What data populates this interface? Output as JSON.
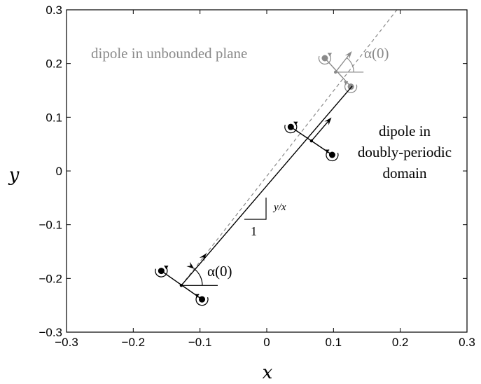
{
  "chart_data": {
    "type": "scatter",
    "xlabel": "x",
    "ylabel": "y",
    "xlim": [
      -0.3,
      0.3
    ],
    "ylim": [
      -0.3,
      0.3
    ],
    "xticks": [
      -0.3,
      -0.2,
      -0.1,
      0,
      0.1,
      0.2,
      0.3
    ],
    "yticks": [
      -0.3,
      -0.2,
      -0.1,
      0,
      0.1,
      0.2,
      0.3
    ],
    "xtick_labels": [
      "−0.3",
      "−0.2",
      "−0.1",
      "0",
      "0.1",
      "0.2",
      "0.3"
    ],
    "ytick_labels": [
      "−0.3",
      "−0.2",
      "−0.1",
      "0",
      "0.1",
      "0.2",
      "0.3"
    ],
    "grid": false,
    "colors": {
      "periodic": "#000000",
      "unbounded": "#8a8a8a"
    },
    "series": [
      {
        "name": "dipole in unbounded plane",
        "style": "dashed",
        "line": [
          [
            -0.128,
            -0.213
          ],
          [
            0.195,
            0.3
          ]
        ],
        "vortices": [
          [
            -0.158,
            -0.186
          ],
          [
            -0.097,
            -0.239
          ],
          [
            0.087,
            0.21
          ],
          [
            0.126,
            0.157
          ]
        ],
        "midpoints": [
          [
            -0.128,
            -0.213
          ],
          [
            0.103,
            0.184
          ]
        ]
      },
      {
        "name": "dipole in doubly-periodic domain",
        "style": "solid",
        "line": [
          [
            -0.128,
            -0.213
          ],
          [
            0.128,
            0.158
          ]
        ],
        "vortices": [
          [
            -0.158,
            -0.186
          ],
          [
            -0.097,
            -0.239
          ],
          [
            0.036,
            0.082
          ],
          [
            0.098,
            0.03
          ]
        ],
        "midpoints": [
          [
            -0.128,
            -0.213
          ],
          [
            0.067,
            0.056
          ]
        ]
      }
    ],
    "annotations": {
      "alpha_label": "α(0)",
      "unbounded_label": "dipole in unbounded plane",
      "periodic_label_lines": [
        "dipole in",
        "doubly-periodic",
        "domain"
      ],
      "slope_label": "y/x",
      "slope_run_label": "1"
    }
  }
}
